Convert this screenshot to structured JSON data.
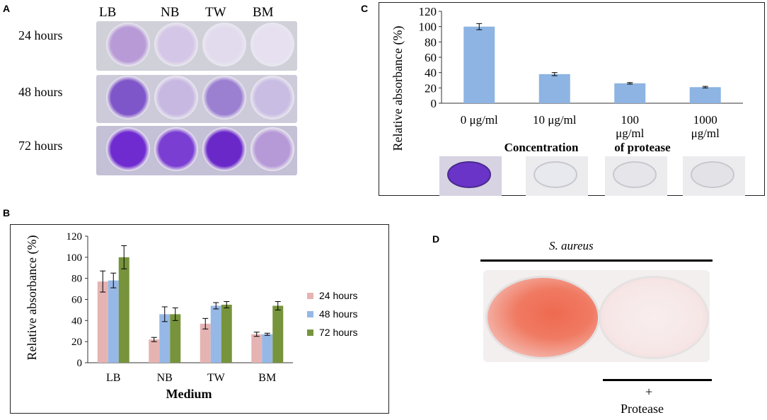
{
  "panels": {
    "a": "A",
    "b": "B",
    "c": "C",
    "d": "D"
  },
  "panel_a": {
    "columns": [
      "LB",
      "NB",
      "TW",
      "BM"
    ],
    "rows": [
      "24 hours",
      "48 hours",
      "72 hours"
    ],
    "well_colors": [
      [
        "#b79ad6",
        "#d4c6e6",
        "#e2dbee",
        "#e6e0f0"
      ],
      [
        "#7f56c9",
        "#c7b8e2",
        "#9b7fd1",
        "#c9bde3"
      ],
      [
        "#6f2bd0",
        "#7a3ed2",
        "#6a28c9",
        "#b69ad8"
      ]
    ]
  },
  "chart_data": [
    {
      "panel": "B",
      "type": "bar",
      "categories": [
        "LB",
        "NB",
        "TW",
        "BM"
      ],
      "series": [
        {
          "name": "24 hours",
          "color": "#e6b3b3",
          "values": [
            77,
            22,
            37,
            27
          ],
          "errors": [
            10,
            2,
            5,
            2
          ]
        },
        {
          "name": "48 hours",
          "color": "#96b8e6",
          "values": [
            78,
            46,
            54,
            27
          ],
          "errors": [
            7,
            7,
            3,
            1
          ]
        },
        {
          "name": "72 hours",
          "color": "#77943c",
          "values": [
            100,
            46,
            55,
            54
          ],
          "errors": [
            11,
            6,
            3,
            4
          ]
        }
      ],
      "xlabel": "Medium",
      "ylabel": "Relative absorbance (%)",
      "ylim": [
        0,
        120
      ],
      "yticks": [
        "0",
        "20",
        "40",
        "60",
        "80",
        "100",
        "120"
      ],
      "legend_position": "right"
    },
    {
      "panel": "C",
      "type": "bar",
      "categories": [
        [
          "0",
          "μg/ml"
        ],
        [
          "10",
          "μg/ml"
        ],
        [
          "100",
          "μg/ml"
        ],
        [
          "1000",
          "μg/ml"
        ]
      ],
      "series": [
        {
          "name": "Relative absorbance",
          "color": "#8db4e2",
          "values": [
            100,
            38,
            26,
            21
          ],
          "errors": [
            4,
            2,
            1,
            1
          ]
        }
      ],
      "xlabel_parts": [
        "Concentration",
        "of protease"
      ],
      "ylabel": "Relative absorbance (%)",
      "ylim": [
        0,
        120
      ],
      "yticks": [
        "0",
        "20",
        "40",
        "60",
        "80",
        "100",
        "120"
      ],
      "well_colors": [
        "#6a34c8",
        "#e8e8ef",
        "#e5e5ea",
        "#e3e3e7"
      ]
    }
  ],
  "panel_d": {
    "organism": "S. aureus",
    "plus": "+",
    "treatment": "Protease"
  }
}
